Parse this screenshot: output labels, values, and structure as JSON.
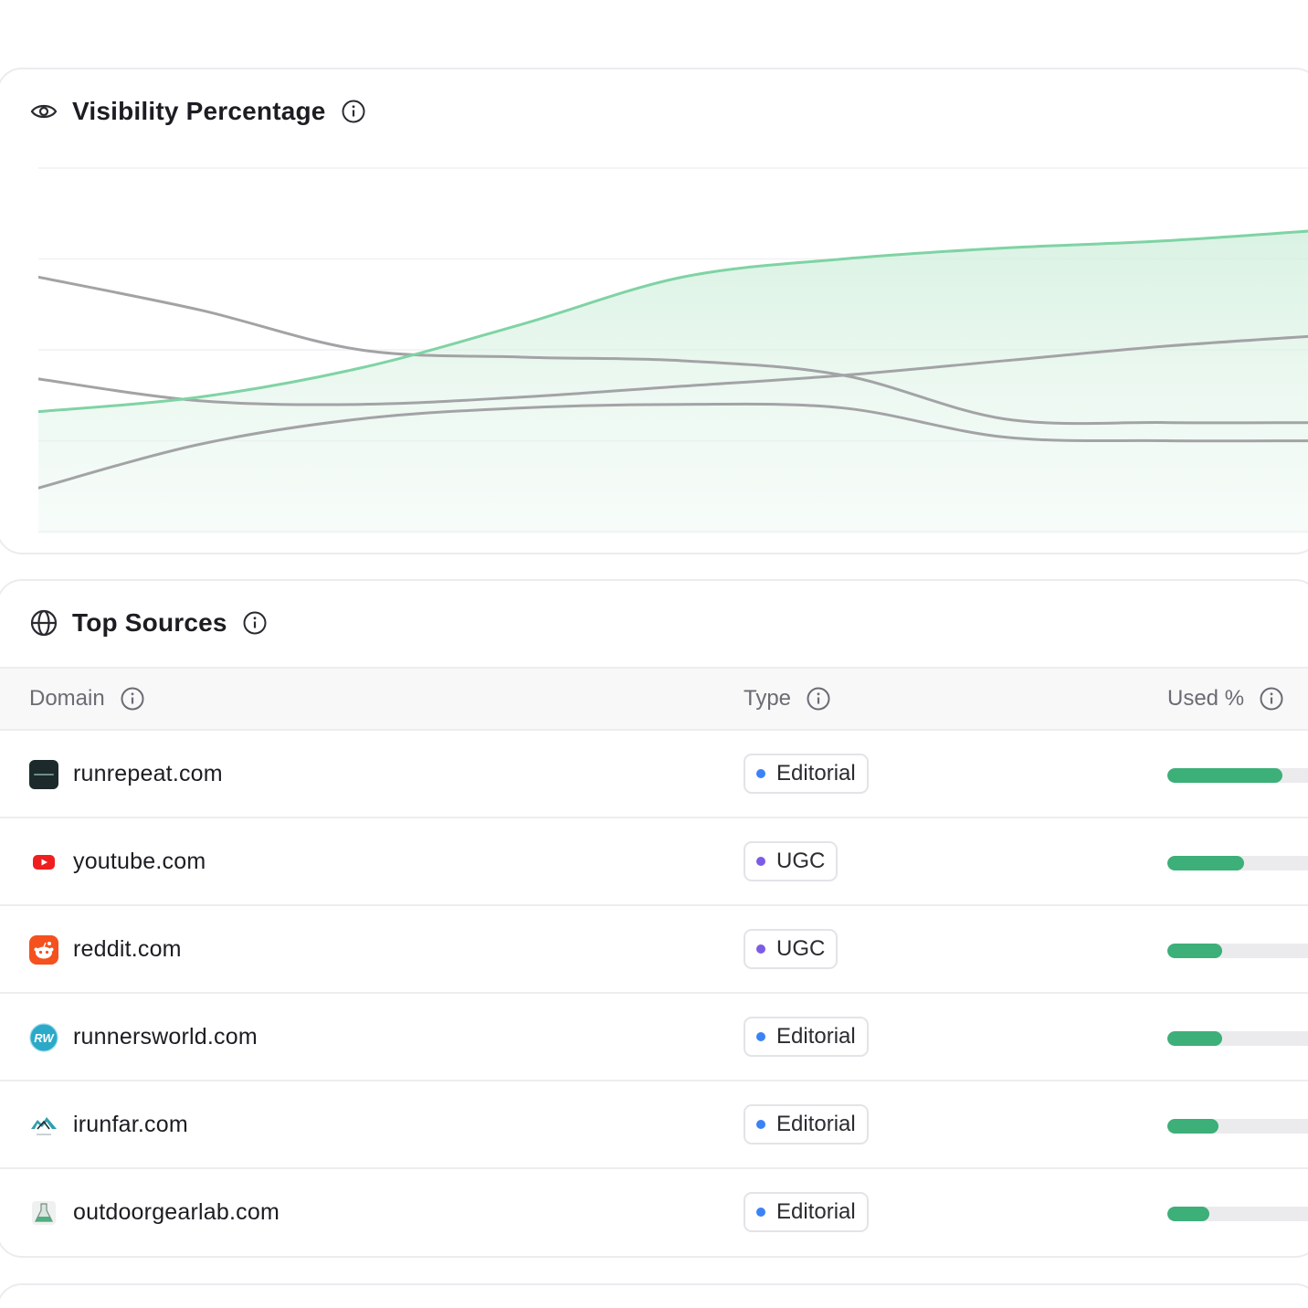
{
  "visibility": {
    "title": "Visibility Percentage",
    "icon": "eye-icon"
  },
  "chart_data": {
    "type": "line",
    "title": "Visibility Percentage",
    "xlabel": "",
    "ylabel": "",
    "ylim": [
      0,
      100
    ],
    "grid": true,
    "highlight_color": "#7fd3a4",
    "muted_color": "#a3a3a6",
    "x": [
      0,
      1,
      2,
      3,
      4,
      5,
      6,
      7,
      8
    ],
    "series": [
      {
        "highlight": true,
        "values": [
          33,
          37,
          45,
          57,
          70,
          75,
          78,
          80,
          83
        ]
      },
      {
        "highlight": false,
        "values": [
          70,
          61,
          50,
          48,
          47,
          43,
          31,
          30,
          30
        ]
      },
      {
        "highlight": false,
        "values": [
          42,
          36,
          35,
          37,
          40,
          43,
          47,
          51,
          54
        ]
      },
      {
        "highlight": false,
        "values": [
          12,
          24,
          31,
          34,
          35,
          34,
          26,
          25,
          25
        ]
      }
    ]
  },
  "sources": {
    "title": "Top Sources",
    "icon": "globe-icon",
    "columns": {
      "domain": "Domain",
      "type": "Type",
      "used": "Used %"
    },
    "rows": [
      {
        "domain": "runrepeat.com",
        "type": "Editorial",
        "type_color": "#3b82f6",
        "used": 0.63,
        "favicon": "runrepeat-logo-icon"
      },
      {
        "domain": "youtube.com",
        "type": "UGC",
        "type_color": "#7c5ce6",
        "used": 0.42,
        "favicon": "youtube-logo-icon"
      },
      {
        "domain": "reddit.com",
        "type": "UGC",
        "type_color": "#7c5ce6",
        "used": 0.3,
        "favicon": "reddit-logo-icon"
      },
      {
        "domain": "runnersworld.com",
        "type": "Editorial",
        "type_color": "#3b82f6",
        "used": 0.3,
        "favicon": "runnersworld-logo-icon"
      },
      {
        "domain": "irunfar.com",
        "type": "Editorial",
        "type_color": "#3b82f6",
        "used": 0.28,
        "favicon": "irunfar-logo-icon"
      },
      {
        "domain": "outdoorgearlab.com",
        "type": "Editorial",
        "type_color": "#3b82f6",
        "used": 0.23,
        "favicon": "outdoorgearlab-logo-icon"
      }
    ]
  }
}
